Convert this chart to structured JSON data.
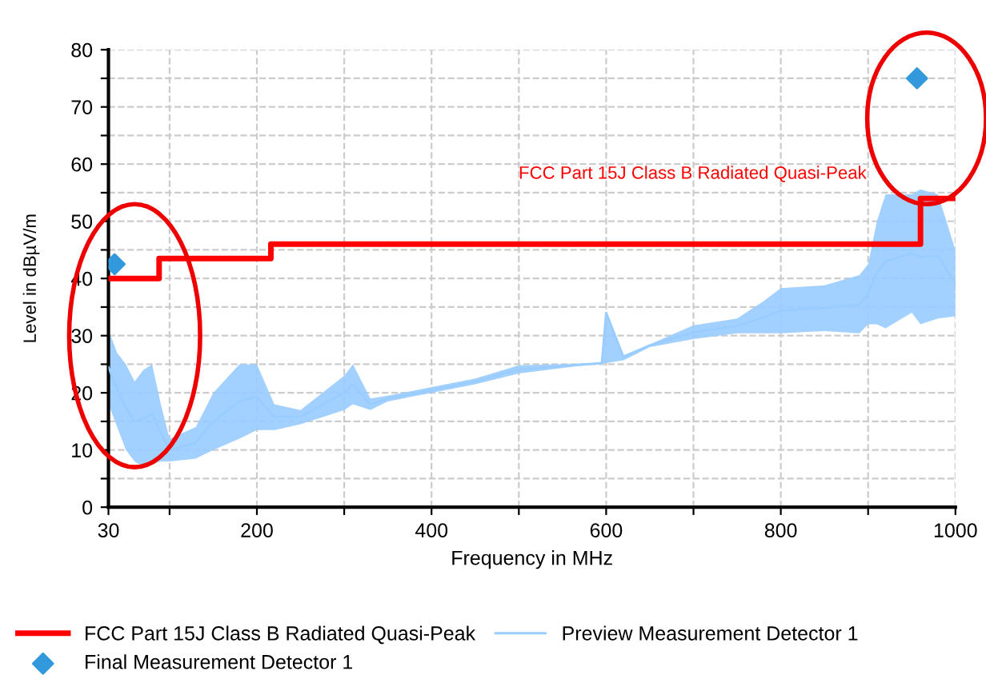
{
  "chart_data": {
    "type": "line",
    "xlabel": "Frequency in MHz",
    "ylabel": "Level in dBµV/m",
    "xlim": [
      30,
      1000
    ],
    "ylim": [
      0,
      80
    ],
    "xticks": [
      30,
      {
        "value": 100,
        "label": null
      },
      200,
      {
        "value": 300,
        "label": null
      },
      400,
      {
        "value": 500,
        "label": null
      },
      600,
      {
        "value": 700,
        "label": null
      },
      800,
      {
        "value": 900,
        "label": null
      },
      1000
    ],
    "yticks": [
      0,
      {
        "value": 5,
        "label": null
      },
      10,
      {
        "value": 15,
        "label": null
      },
      20,
      {
        "value": 25,
        "label": null
      },
      30,
      {
        "value": 35,
        "label": null
      },
      40,
      {
        "value": 45,
        "label": null
      },
      50,
      {
        "value": 55,
        "label": null
      },
      60,
      {
        "value": 65,
        "label": null
      },
      70,
      {
        "value": 75,
        "label": null
      },
      80
    ],
    "grid": true,
    "legend": "bottom",
    "annotations": [
      "FCC Part 15J Class B Radiated Quasi-Peak"
    ],
    "series": [
      {
        "name": "FCC Part 15J Class B Radiated Quasi-Peak",
        "type": "step",
        "color": "#ff0000",
        "x": [
          30,
          88,
          216,
          960,
          1000
        ],
        "values": [
          40,
          43.5,
          46,
          54,
          54
        ]
      },
      {
        "name": "Preview Measurement Detector 1",
        "color": "#99ccff",
        "x": [
          30,
          40,
          50,
          60,
          70,
          80,
          90,
          100,
          130,
          150,
          180,
          200,
          220,
          250,
          300,
          310,
          330,
          350,
          400,
          450,
          500,
          595,
          600,
          620,
          650,
          700,
          750,
          780,
          800,
          850,
          890,
          900,
          910,
          920,
          950,
          960,
          980,
          1000
        ],
        "lower": [
          18,
          14,
          10,
          8,
          7,
          7.5,
          8,
          8,
          8.5,
          10,
          12,
          13.5,
          13.5,
          14.5,
          17,
          18,
          17,
          18.5,
          20,
          21.5,
          23.4,
          25.2,
          25.2,
          25.7,
          28,
          29.4,
          30.4,
          30.4,
          30.4,
          30.8,
          30.4,
          32,
          32,
          31.3,
          34,
          32,
          33,
          33.4
        ],
        "upper": [
          31,
          27,
          25,
          22,
          24,
          25,
          18,
          12,
          14,
          20,
          25,
          25,
          18,
          17,
          23,
          25,
          19,
          19.5,
          21,
          22.5,
          24.8,
          25.2,
          34,
          26.6,
          28.5,
          31.8,
          33,
          36,
          38.3,
          38.8,
          40.6,
          42.5,
          50,
          54.7,
          54.7,
          55.6,
          54.7,
          45
        ],
        "values": [
          24.5,
          20.5,
          17.5,
          15,
          15.5,
          16.3,
          13,
          10,
          11.3,
          15,
          18.5,
          19.3,
          15.8,
          15.8,
          20,
          21.5,
          18,
          19,
          20.5,
          22,
          24.1,
          25.2,
          34,
          26.2,
          28.3,
          30.6,
          31.7,
          33.2,
          34.4,
          34.8,
          35.5,
          37.3,
          41,
          43,
          44.4,
          43.8,
          43.9,
          39.2
        ]
      },
      {
        "name": "Final Measurement Detector 1",
        "type": "scatter",
        "color": "#3399dd",
        "marker": "diamond",
        "x": [
          37,
          956
        ],
        "values": [
          42.5,
          75
        ]
      }
    ]
  }
}
